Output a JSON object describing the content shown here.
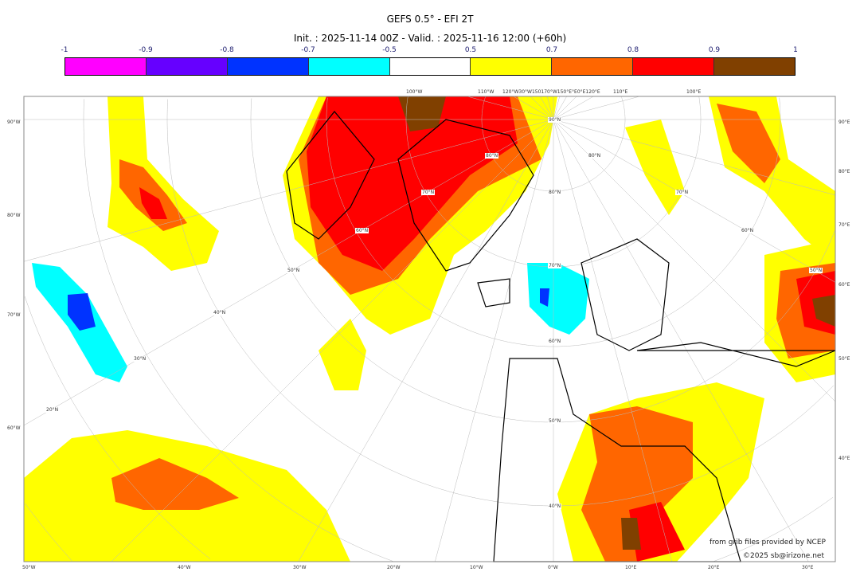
{
  "title": "GEFS 0.5° - EFI 2T",
  "subtitle": "Init. : 2025-11-14 00Z - Valid. : 2025-11-16 12:00 (+60h)",
  "colorbar": {
    "ticks": [
      "-1",
      "-0.9",
      "-0.8",
      "-0.7",
      "-0.5",
      "0.5",
      "0.7",
      "0.8",
      "0.9",
      "1"
    ],
    "colors": [
      "#ff00ff",
      "#6600ff",
      "#0033ff",
      "#00ffff",
      "#ffffff",
      "#ffff00",
      "#ff6600",
      "#ff0000",
      "#804000"
    ]
  },
  "axis_labels": {
    "bottom": [
      "50°W",
      "40°W",
      "30°W",
      "20°W",
      "10°W",
      "0°W",
      "10°E",
      "20°E",
      "30°E"
    ],
    "left": [
      "90°W",
      "80°W",
      "70°W",
      "60°W"
    ],
    "right": [
      "90°E",
      "80°E",
      "70°E",
      "60°E",
      "50°E",
      "40°E"
    ],
    "top": [
      "100°W",
      "110°W",
      "120°W30°W150170°W150°E°E0°E120°E",
      "110°E",
      "100°E"
    ],
    "latitudes": [
      "90°N",
      "80°N",
      "70°N",
      "60°N",
      "50°N",
      "40°N",
      "20°N",
      "30°N",
      "40°N",
      "50°N",
      "60°N",
      "70°N",
      "80°N",
      "80°N",
      "70°N",
      "60°N",
      "50°N"
    ]
  },
  "credits": {
    "source": "from grib files provided by NCEP",
    "copyright": "©2025 sb@irizone.net"
  }
}
